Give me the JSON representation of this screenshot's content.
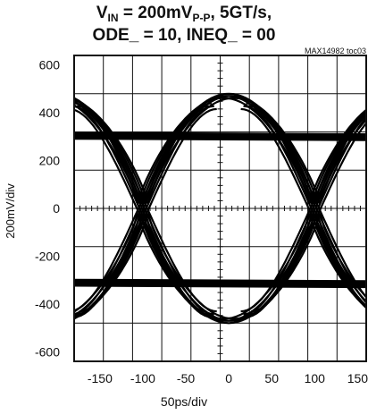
{
  "chart_data": {
    "type": "line",
    "title_line1": {
      "v": "V",
      "in": "IN",
      "rest": " = 200mV",
      "pp": "P-P",
      "end": ", 5GT/s,"
    },
    "title_line2": "ODE_ = 10, INEQ_ = 00",
    "doc_id": "MAX14982 toc03",
    "xlabel": "50ps/div",
    "ylabel": "200mV/div",
    "xlim": [
      -180,
      160
    ],
    "ylim": [
      -640,
      640
    ],
    "x_ticks": [
      -150,
      -100,
      -50,
      0,
      50,
      100,
      150
    ],
    "x_tick_labels": [
      "-150",
      "-100",
      "-50",
      "0",
      "50",
      "100",
      "150"
    ],
    "y_ticks": [
      600,
      400,
      200,
      0,
      -200,
      -400,
      -600
    ],
    "y_tick_labels": [
      "600",
      "400",
      "200",
      "0",
      "-200",
      "-400",
      "-600"
    ],
    "grid": true,
    "eye": {
      "high_level": 300,
      "low_level": -315,
      "peak_level": 480,
      "trough_level": -480,
      "crossings_x": [
        -100,
        100
      ],
      "unit_interval": 200,
      "trace_color": "#000000"
    }
  }
}
